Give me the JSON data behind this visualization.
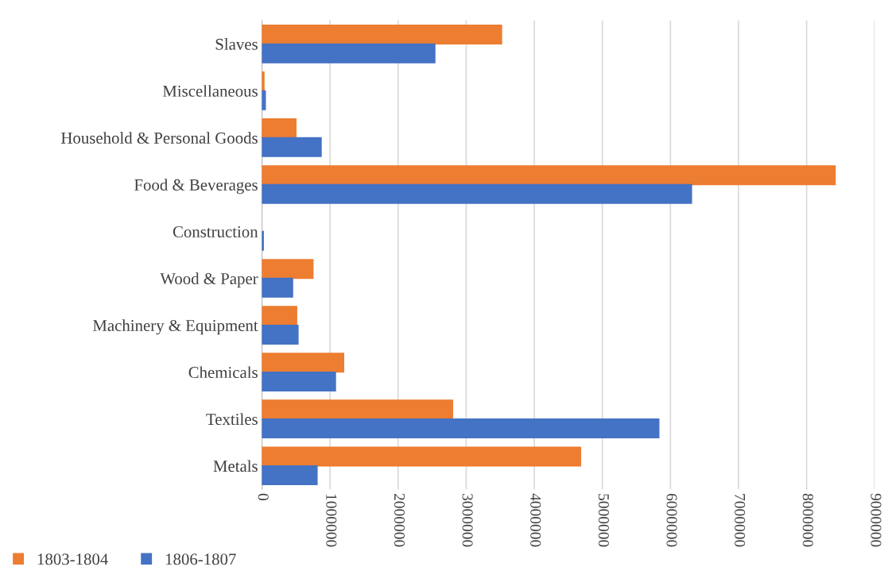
{
  "chart_data": {
    "type": "bar",
    "orientation": "horizontal",
    "categories": [
      "Slaves",
      "Miscellaneous",
      "Household & Personal Goods",
      "Food & Beverages",
      "Construction",
      "Wood & Paper",
      "Machinery & Equipment",
      "Chemicals",
      "Textiles",
      "Metals"
    ],
    "series": [
      {
        "name": "1803-1804",
        "color": "#ed7d31",
        "values": [
          3520000,
          30000,
          500000,
          8420000,
          null,
          750000,
          510000,
          1200000,
          2800000,
          4680000
        ]
      },
      {
        "name": "1806-1807",
        "color": "#4472c4",
        "values": [
          2540000,
          50000,
          870000,
          6310000,
          20000,
          450000,
          530000,
          1080000,
          5830000,
          810000
        ]
      }
    ],
    "xlim": [
      0,
      9000000
    ],
    "xticks": [
      0,
      1000000,
      2000000,
      3000000,
      4000000,
      5000000,
      6000000,
      7000000,
      8000000,
      9000000
    ],
    "grid": "x",
    "legend": "bottom"
  }
}
